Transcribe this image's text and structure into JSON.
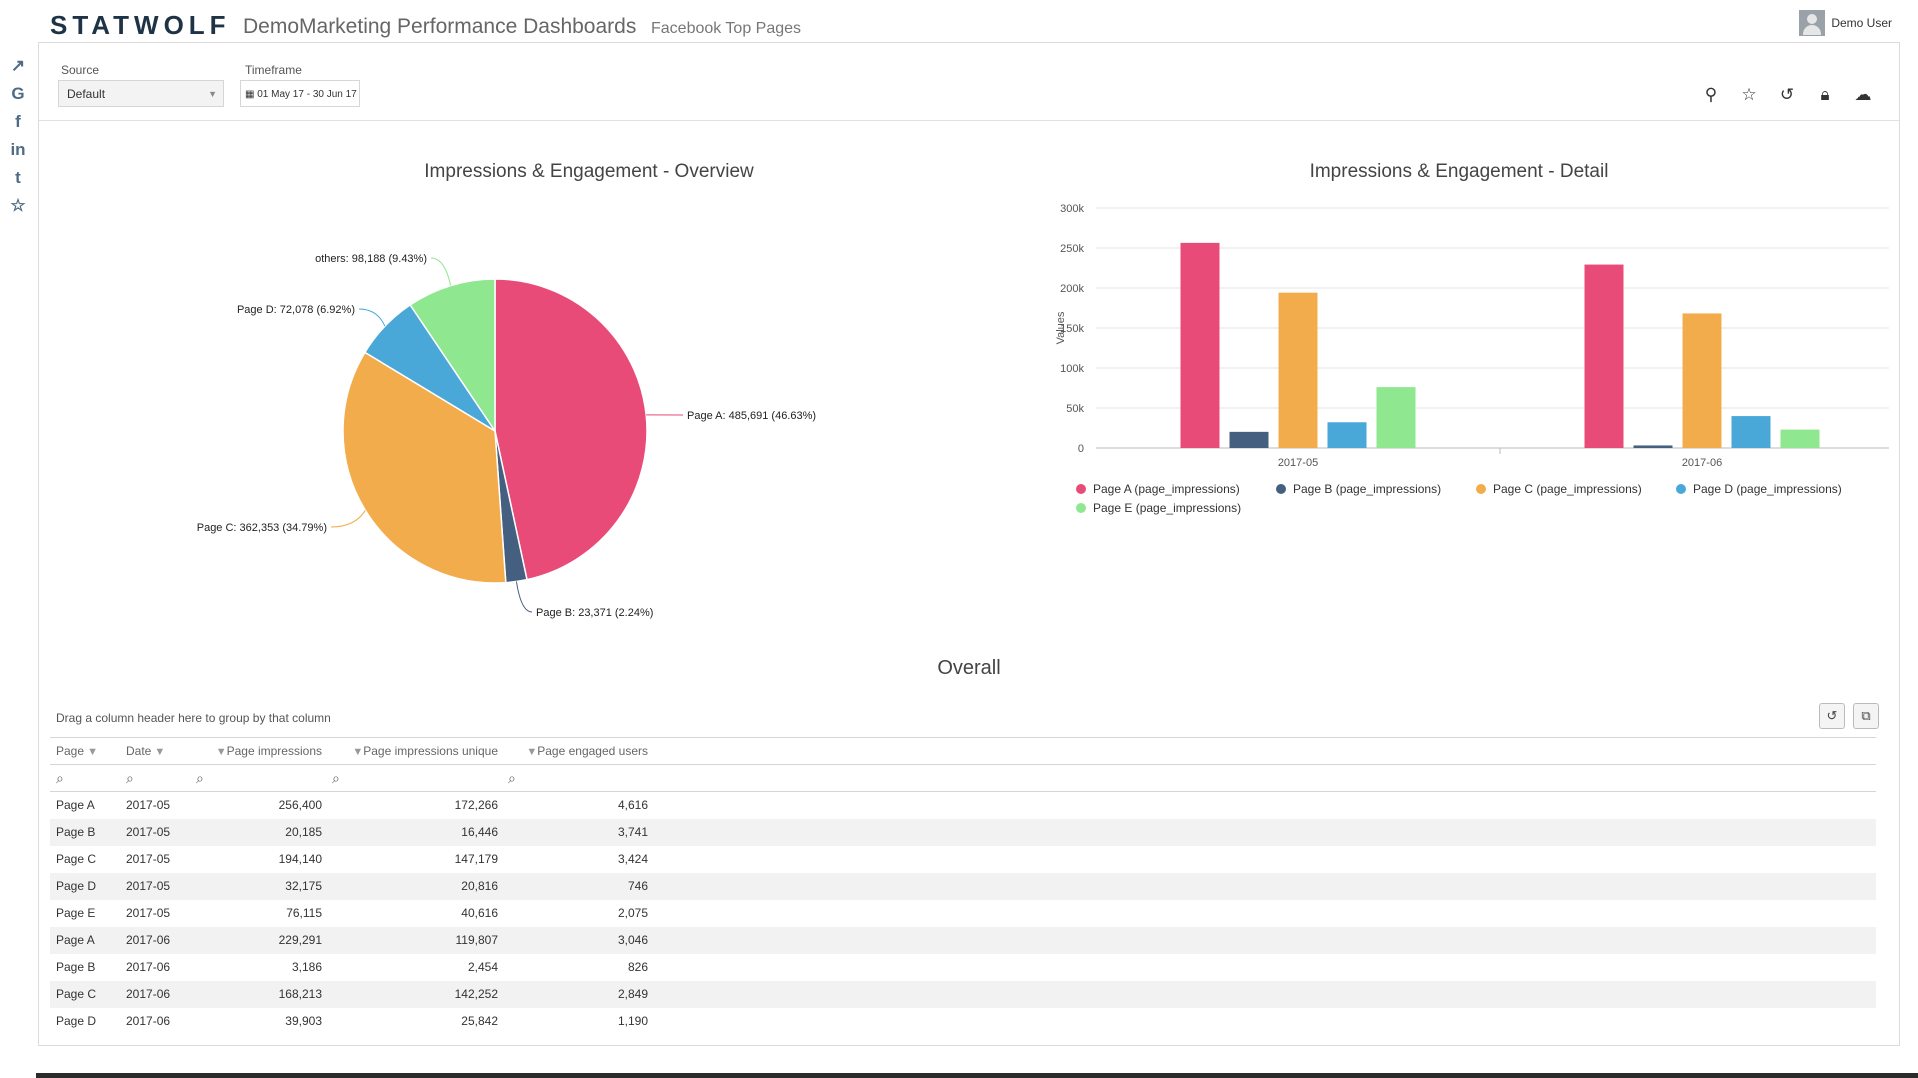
{
  "header": {
    "logo": "STATWOLF",
    "app_title": "DemoMarketing Performance Dashboards",
    "sub_title": "Facebook Top Pages",
    "user_name": "Demo User"
  },
  "sidebar": {
    "items": [
      {
        "name": "line-chart-icon",
        "glyph": "↗"
      },
      {
        "name": "google-icon",
        "glyph": "G"
      },
      {
        "name": "facebook-icon",
        "glyph": "f"
      },
      {
        "name": "linkedin-icon",
        "glyph": "in"
      },
      {
        "name": "twitter-icon",
        "glyph": "t"
      },
      {
        "name": "star-icon",
        "glyph": "☆"
      }
    ]
  },
  "filters": {
    "source_label": "Source",
    "source_value": "Default",
    "timeframe_label": "Timeframe",
    "timeframe_value": "01 May 17 - 30 Jun 17"
  },
  "actions": {
    "icons": [
      "pin-icon",
      "star-icon",
      "undo-icon",
      "lock-icon",
      "cloud-download-icon"
    ]
  },
  "colors": {
    "page_a": "#e84b77",
    "page_b": "#455f80",
    "page_c": "#f2ac4b",
    "page_d": "#4aa8d8",
    "page_e": "#8fe88f"
  },
  "pie": {
    "title": "Impressions & Engagement - Overview",
    "slices": [
      {
        "name": "Page A",
        "value": 485691,
        "pct": 46.63,
        "label": "Page A: 485,691 (46.63%)",
        "color": "#e84b77"
      },
      {
        "name": "Page B",
        "value": 23371,
        "pct": 2.24,
        "label": "Page B: 23,371 (2.24%)",
        "color": "#455f80"
      },
      {
        "name": "Page C",
        "value": 362353,
        "pct": 34.79,
        "label": "Page C: 362,353 (34.79%)",
        "color": "#f2ac4b"
      },
      {
        "name": "Page D",
        "value": 72078,
        "pct": 6.92,
        "label": "Page D: 72,078 (6.92%)",
        "color": "#4aa8d8"
      },
      {
        "name": "others",
        "value": 98188,
        "pct": 9.43,
        "label": "others: 98,188 (9.43%)",
        "color": "#8fe88f"
      }
    ]
  },
  "bar": {
    "title": "Impressions & Engagement - Detail",
    "ylabel": "Values",
    "yticks": [
      "0",
      "50k",
      "100k",
      "150k",
      "200k",
      "250k",
      "300k"
    ],
    "ymax": 300000,
    "categories": [
      "2017-05",
      "2017-06"
    ],
    "legend": [
      "Page A (page_impressions)",
      "Page B (page_impressions)",
      "Page C (page_impressions)",
      "Page D (page_impressions)",
      "Page E (page_impressions)"
    ]
  },
  "chart_data": [
    {
      "type": "pie",
      "title": "Impressions & Engagement - Overview",
      "categories": [
        "Page A",
        "Page B",
        "Page C",
        "Page D",
        "others"
      ],
      "values": [
        485691,
        23371,
        362353,
        72078,
        98188
      ],
      "percentages": [
        46.63,
        2.24,
        34.79,
        6.92,
        9.43
      ]
    },
    {
      "type": "bar",
      "title": "Impressions & Engagement - Detail",
      "ylabel": "Values",
      "xlabel": "",
      "ylim": [
        0,
        300000
      ],
      "categories": [
        "2017-05",
        "2017-06"
      ],
      "series": [
        {
          "name": "Page A (page_impressions)",
          "values": [
            256400,
            229291
          ]
        },
        {
          "name": "Page B (page_impressions)",
          "values": [
            20185,
            3186
          ]
        },
        {
          "name": "Page C (page_impressions)",
          "values": [
            194140,
            168213
          ]
        },
        {
          "name": "Page D (page_impressions)",
          "values": [
            32175,
            39903
          ]
        },
        {
          "name": "Page E (page_impressions)",
          "values": [
            76115,
            23000
          ]
        }
      ],
      "legend_position": "bottom"
    }
  ],
  "grid": {
    "title": "Overall",
    "group_hint": "Drag a column header here to group by that column",
    "columns": [
      "Page",
      "Date",
      "Page impressions",
      "Page impressions unique",
      "Page engaged users"
    ],
    "rows": [
      [
        "Page A",
        "2017-05",
        "256,400",
        "172,266",
        "4,616"
      ],
      [
        "Page B",
        "2017-05",
        "20,185",
        "16,446",
        "3,741"
      ],
      [
        "Page C",
        "2017-05",
        "194,140",
        "147,179",
        "3,424"
      ],
      [
        "Page D",
        "2017-05",
        "32,175",
        "20,816",
        "746"
      ],
      [
        "Page E",
        "2017-05",
        "76,115",
        "40,616",
        "2,075"
      ],
      [
        "Page A",
        "2017-06",
        "229,291",
        "119,807",
        "3,046"
      ],
      [
        "Page B",
        "2017-06",
        "3,186",
        "2,454",
        "826"
      ],
      [
        "Page C",
        "2017-06",
        "168,213",
        "142,252",
        "2,849"
      ],
      [
        "Page D",
        "2017-06",
        "39,903",
        "25,842",
        "1,190"
      ]
    ]
  }
}
